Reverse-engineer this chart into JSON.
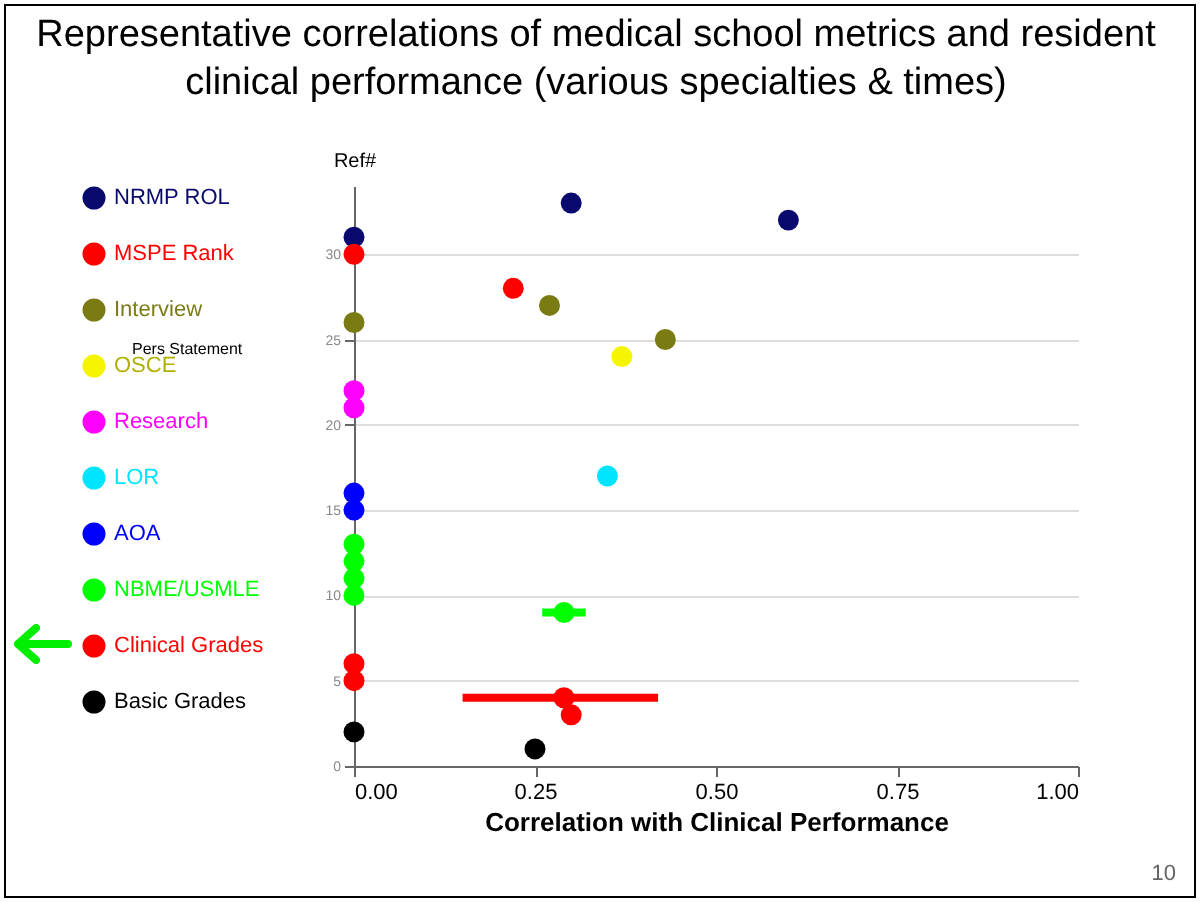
{
  "chart_data": {
    "type": "scatter",
    "title": "Representative correlations of medical school metrics and resident clinical performance (various specialties & times)",
    "xlabel": "Correlation with Clinical Performance",
    "ylabel": "Ref#",
    "xlim": [
      0,
      1
    ],
    "xticks": [
      {
        "value": 0,
        "label": "0.00"
      },
      {
        "value": 0.25,
        "label": "0.25"
      },
      {
        "value": 0.5,
        "label": "0.50"
      },
      {
        "value": 0.75,
        "label": "0.75"
      },
      {
        "value": 1,
        "label": "1.00"
      }
    ],
    "ylim": [
      0,
      34
    ],
    "yticks": [
      0,
      5,
      10,
      15,
      20,
      25,
      30
    ],
    "grid": "y",
    "legend": "left",
    "marker": "circle",
    "series": [
      {
        "name": "NRMP ROL",
        "color": "#0a0a6e",
        "x": [
          0.3,
          0.6,
          0
        ],
        "values": [
          33,
          32,
          31
        ]
      },
      {
        "name": "MSPE Rank",
        "color": "#ff0000",
        "x": [
          0,
          0.22
        ],
        "values": [
          30,
          28
        ]
      },
      {
        "name": "Interview",
        "color": "#7b7b14",
        "x": [
          0.27,
          0,
          0.43
        ],
        "values": [
          27,
          26,
          25
        ]
      },
      {
        "name": "OSCE",
        "color": "#f5f500",
        "x": [
          0.37
        ],
        "values": [
          24
        ]
      },
      {
        "name": "Research",
        "color": "#ff00ff",
        "x": [
          0,
          0
        ],
        "values": [
          22,
          21
        ]
      },
      {
        "name": "LOR",
        "color": "#00e5ff",
        "x": [
          0.35
        ],
        "values": [
          17
        ]
      },
      {
        "name": "AOA",
        "color": "#0000ff",
        "x": [
          0,
          0
        ],
        "values": [
          16,
          15
        ]
      },
      {
        "name": "NBME/USMLE",
        "color": "#00ff00",
        "x": [
          0,
          0,
          0,
          0,
          0.29
        ],
        "values": [
          13,
          12,
          11,
          10,
          9
        ],
        "xerrors": [
          null,
          null,
          null,
          null,
          [
            0.26,
            0.32
          ]
        ]
      },
      {
        "name": "Clinical Grades",
        "color": "#ff0000",
        "x": [
          0,
          0,
          0.29,
          0.3
        ],
        "values": [
          6,
          5,
          4,
          3
        ],
        "xerrors": [
          null,
          null,
          [
            0.15,
            0.42
          ],
          null
        ]
      },
      {
        "name": "Basic Grades",
        "color": "#000000",
        "x": [
          0,
          0.25
        ],
        "values": [
          2,
          1
        ]
      }
    ],
    "annotations": [
      "Pers Statement",
      "10"
    ]
  }
}
